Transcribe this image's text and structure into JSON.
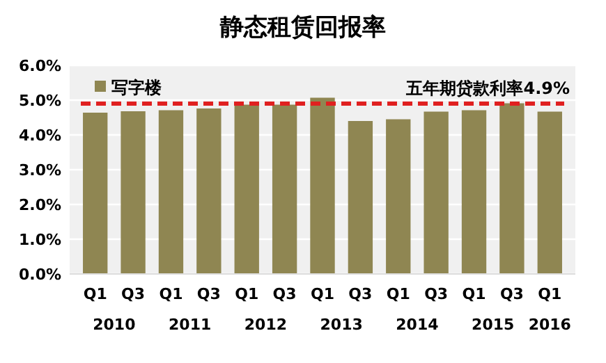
{
  "chart_data": {
    "type": "bar",
    "title": "静态租赁回报率",
    "categories": [
      "Q1",
      "Q3",
      "Q1",
      "Q3",
      "Q1",
      "Q3",
      "Q1",
      "Q3",
      "Q1",
      "Q3",
      "Q1",
      "Q3",
      "Q1"
    ],
    "annotations": [
      "2010",
      "2011",
      "2012",
      "2013",
      "2014",
      "2015",
      "2016"
    ],
    "series": [
      {
        "name": "写字楼",
        "color": "#8f8652",
        "values": [
          4.64,
          4.68,
          4.71,
          4.76,
          4.87,
          4.87,
          5.07,
          4.4,
          4.45,
          4.67,
          4.71,
          4.91,
          4.67
        ]
      }
    ],
    "ylim": [
      0,
      6
    ],
    "yticks": [
      {
        "value": 0,
        "label": "0.0%"
      },
      {
        "value": 1,
        "label": "1.0%"
      },
      {
        "value": 2,
        "label": "2.0%"
      },
      {
        "value": 3,
        "label": "3.0%"
      },
      {
        "value": 4,
        "label": "4.0%"
      },
      {
        "value": 5,
        "label": "5.0%"
      },
      {
        "value": 6,
        "label": "6.0%"
      }
    ],
    "grid": "y",
    "legend": "top left",
    "ref_lines": [
      {
        "axis": "y",
        "value": 4.9,
        "label": "五年期贷款利率4.9%",
        "color": "#e02020",
        "line_style": "dashed"
      }
    ]
  }
}
